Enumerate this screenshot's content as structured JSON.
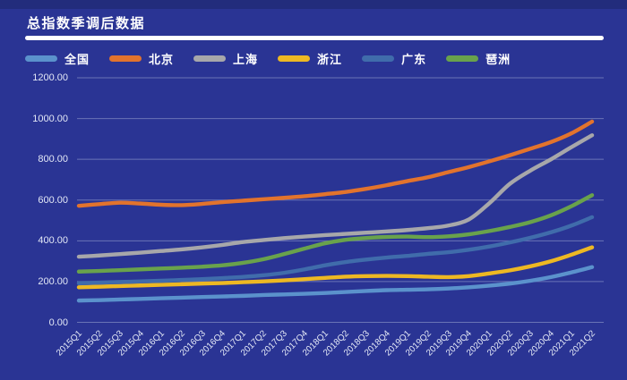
{
  "page": {
    "title": "总指数季调后数据"
  },
  "colors": {
    "background": "#2a3494",
    "top_strip": "#222c7c",
    "title_text": "#ffffff",
    "underline": "#ffffff",
    "axis_text": "#e3e8f6",
    "gridline": "rgba(210,219,240,0.38)"
  },
  "chart_data": {
    "type": "line",
    "title": "总指数季调后数据",
    "xlabel": "",
    "ylabel": "",
    "ylim": [
      0,
      1200
    ],
    "ytick_step": 200,
    "ytick_labels": [
      "0.00",
      "200.00",
      "400.00",
      "600.00",
      "800.00",
      "1000.00",
      "1200.00"
    ],
    "grid": true,
    "legend_position": "top",
    "categories": [
      "2015Q1",
      "2015Q2",
      "2015Q3",
      "2015Q4",
      "2016Q1",
      "2016Q2",
      "2016Q3",
      "2016Q4",
      "2017Q1",
      "2017Q2",
      "2017Q3",
      "2017Q4",
      "2018Q1",
      "2018Q2",
      "2018Q3",
      "2018Q4",
      "2019Q1",
      "2019Q2",
      "2019Q3",
      "2019Q4",
      "2020Q1",
      "2020Q2",
      "2020Q3",
      "2020Q4",
      "2021Q1",
      "2021Q2"
    ],
    "series": [
      {
        "name": "全国",
        "slug": "quanguo",
        "color": "#5b92cc",
        "values": [
          107,
          109,
          112,
          115,
          118,
          121,
          124,
          127,
          130,
          134,
          137,
          140,
          144,
          149,
          154,
          158,
          160,
          162,
          166,
          172,
          180,
          190,
          204,
          222,
          245,
          271
        ]
      },
      {
        "name": "北京",
        "slug": "beijing",
        "color": "#e2732d",
        "values": [
          572,
          580,
          587,
          583,
          577,
          575,
          581,
          590,
          597,
          604,
          611,
          619,
          629,
          640,
          655,
          673,
          693,
          712,
          737,
          762,
          790,
          820,
          852,
          885,
          928,
          985
        ]
      },
      {
        "name": "上海",
        "slug": "shanghai",
        "color": "#a7a7aa",
        "values": [
          322,
          328,
          335,
          342,
          350,
          358,
          368,
          380,
          394,
          404,
          413,
          421,
          428,
          434,
          440,
          446,
          453,
          462,
          475,
          505,
          585,
          680,
          745,
          800,
          860,
          918
        ]
      },
      {
        "name": "浙江",
        "slug": "zhejiang",
        "color": "#edb823",
        "values": [
          172,
          175,
          178,
          181,
          184,
          187,
          190,
          193,
          197,
          201,
          206,
          212,
          218,
          224,
          227,
          228,
          227,
          224,
          222,
          227,
          240,
          255,
          275,
          300,
          332,
          368
        ]
      },
      {
        "name": "广东",
        "slug": "guangdong",
        "color": "#406cab",
        "values": [
          192,
          195,
          198,
          201,
          204,
          208,
          212,
          217,
          223,
          231,
          243,
          260,
          280,
          296,
          308,
          318,
          326,
          336,
          344,
          356,
          372,
          392,
          415,
          442,
          475,
          516
        ]
      },
      {
        "name": "琶洲",
        "slug": "pazhou",
        "color": "#69a24c",
        "values": [
          249,
          252,
          256,
          260,
          264,
          268,
          273,
          280,
          292,
          310,
          335,
          362,
          388,
          405,
          414,
          419,
          421,
          418,
          422,
          432,
          448,
          468,
          492,
          525,
          570,
          624
        ]
      }
    ]
  }
}
